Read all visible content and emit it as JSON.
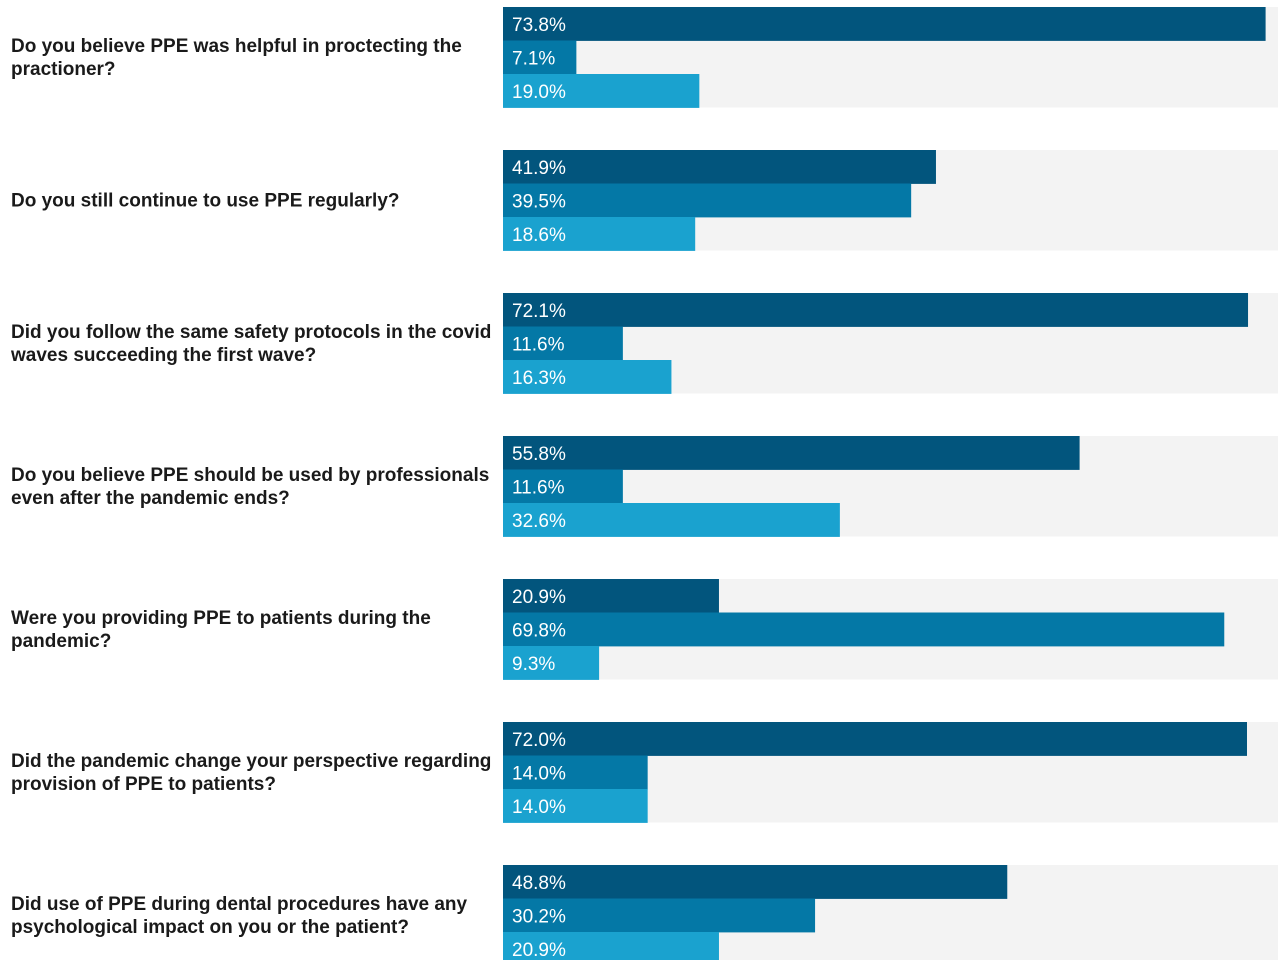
{
  "chart_data": {
    "type": "bar",
    "orientation": "horizontal",
    "xlim": [
      0,
      75
    ],
    "grid": false,
    "legend": "none",
    "colors": [
      "#02557d",
      "#0478a6",
      "#1aa2cf"
    ],
    "track_color": "#f3f3f3",
    "categories": [
      [
        "Do you believe PPE was helpful in proctecting the",
        "practioner?"
      ],
      [
        "Do you still continue to use PPE regularly?"
      ],
      [
        "Did you follow the same safety protocols in the covid",
        "waves succeeding the first wave?"
      ],
      [
        "Do you believe PPE should be used by professionals",
        "even after the pandemic ends?"
      ],
      [
        "Were you providing PPE to patients during the",
        "pandemic?"
      ],
      [
        "Did the pandemic change your perspective regarding",
        "provision of PPE to patients?"
      ],
      [
        "Did use of PPE during dental procedures have any",
        "psychological impact on you or the patient?"
      ]
    ],
    "series": [
      {
        "values": [
          73.8,
          41.9,
          72.1,
          55.8,
          20.9,
          72.0,
          48.8
        ],
        "labels": [
          "73.8%",
          "41.9%",
          "72.1%",
          "55.8%",
          "20.9%",
          "72.0%",
          "48.8%"
        ]
      },
      {
        "values": [
          7.1,
          39.5,
          11.6,
          11.6,
          69.8,
          14.0,
          30.2
        ],
        "labels": [
          "7.1%",
          "39.5%",
          "11.6%",
          "11.6%",
          "69.8%",
          "14.0%",
          "30.2%"
        ]
      },
      {
        "values": [
          19.0,
          18.6,
          16.3,
          32.6,
          9.3,
          14.0,
          20.9
        ],
        "labels": [
          "19.0%",
          "18.6%",
          "16.3%",
          "32.6%",
          "9.3%",
          "14.0%",
          "20.9%"
        ]
      }
    ]
  }
}
